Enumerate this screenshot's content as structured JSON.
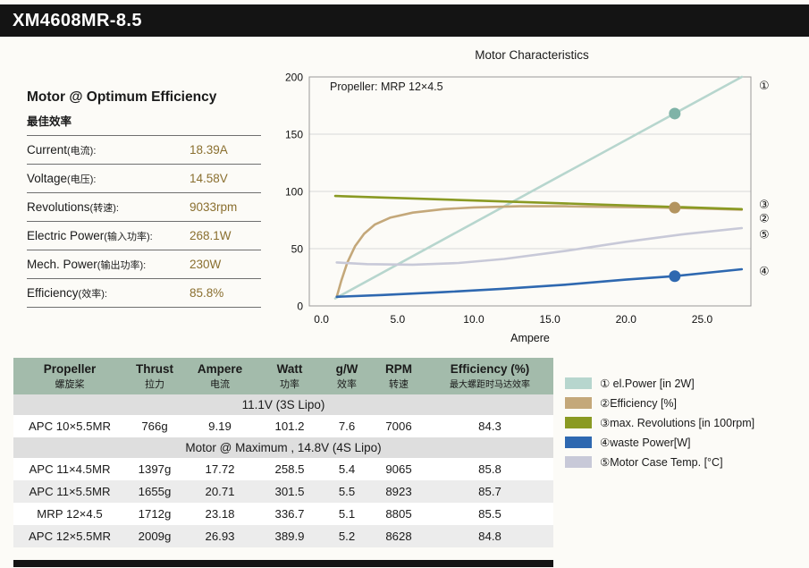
{
  "header": {
    "title": "XM4608MR-8.5"
  },
  "optimum": {
    "title": "Motor @ Optimum Efficiency",
    "subtitle": "最佳效率",
    "rows": [
      {
        "en": "Current",
        "cn": "(电流):",
        "value": "18.39A"
      },
      {
        "en": "Voltage",
        "cn": "(电压):",
        "value": "14.58V"
      },
      {
        "en": "Revolutions",
        "cn": "(转速):",
        "value": "9033rpm"
      },
      {
        "en": "Electric Power",
        "cn": "(输入功率):",
        "value": "268.1W"
      },
      {
        "en": "Mech. Power",
        "cn": "(输出功率):",
        "value": "230W"
      },
      {
        "en": "Efficiency",
        "cn": "(效率):",
        "value": "85.8%"
      }
    ]
  },
  "chart_data": {
    "type": "line",
    "title": "Motor Characteristics",
    "annotation": "Propeller: MRP 12×4.5",
    "xlabel": "Ampere",
    "xlim": [
      -0.8,
      28.2
    ],
    "ylim": [
      0,
      200
    ],
    "xticks": [
      0,
      5,
      10,
      15,
      20,
      25
    ],
    "yticks": [
      0,
      50,
      100,
      150,
      200
    ],
    "grid": "horizontal",
    "legend_position": "outside-bottom-right",
    "series": [
      {
        "glyph": "①",
        "name": "el.Power [in 2W]",
        "color": "#b7d6ce",
        "marker_color": "#7fb3a7",
        "x": [
          0.9,
          27.6
        ],
        "y": [
          6.6,
          200
        ],
        "marker": {
          "x": 23.2,
          "y": 168
        }
      },
      {
        "glyph": "②",
        "name": "Efficiency [%]",
        "color": "#c4a87a",
        "marker_color": "#b3945f",
        "x": [
          1.0,
          1.3,
          1.7,
          2.2,
          2.8,
          3.5,
          4.5,
          6,
          8,
          10,
          13,
          16,
          19,
          22,
          25,
          27.6
        ],
        "y": [
          8,
          22,
          38,
          52,
          63,
          71,
          77,
          81.5,
          84.5,
          86,
          87,
          87,
          86.5,
          86,
          85,
          84
        ],
        "marker": {
          "x": 23.2,
          "y": 85.8
        }
      },
      {
        "glyph": "③",
        "name": "max. Revolutions [in 100rpm]",
        "color": "#8a9a23",
        "x": [
          0.9,
          27.6
        ],
        "y": [
          96,
          84.5
        ]
      },
      {
        "glyph": "④",
        "name": "waste Power[W]",
        "color": "#2e68b0",
        "marker_color": "#2e68b0",
        "x": [
          1,
          4,
          8,
          12,
          16,
          20,
          23.2,
          27.6
        ],
        "y": [
          8,
          9.5,
          12,
          15,
          18.5,
          23,
          26,
          32
        ],
        "marker": {
          "x": 23.2,
          "y": 26
        }
      },
      {
        "glyph": "⑤",
        "name": "Motor Case Temp. [°C]",
        "color": "#c8c9d8",
        "x": [
          1,
          3,
          6,
          9,
          12,
          16,
          20,
          24,
          27.6
        ],
        "y": [
          38,
          36.5,
          36,
          37.5,
          41,
          48,
          56,
          63,
          68
        ]
      }
    ],
    "right_labels": [
      {
        "glyph": "①",
        "value": 193
      },
      {
        "glyph": "③",
        "value": 89
      },
      {
        "glyph": "②",
        "value": 77
      },
      {
        "glyph": "⑤",
        "value": 63
      },
      {
        "glyph": "④",
        "value": 31
      }
    ]
  },
  "table": {
    "headers": [
      {
        "en": "Propeller",
        "cn": "螺旋桨"
      },
      {
        "en": "Thrust",
        "cn": "拉力"
      },
      {
        "en": "Ampere",
        "cn": "电流"
      },
      {
        "en": "Watt",
        "cn": "功率"
      },
      {
        "en": "g/W",
        "cn": "效率"
      },
      {
        "en": "RPM",
        "cn": "转速"
      },
      {
        "en": "Efficiency (%)",
        "cn": "最大螺距时马达效率"
      }
    ],
    "section1": "11.1V (3S Lipo)",
    "section2": "Motor @ Maximum , 14.8V (4S Lipo)",
    "rows1": [
      [
        "APC 10×5.5MR",
        "766g",
        "9.19",
        "101.2",
        "7.6",
        "7006",
        "84.3"
      ]
    ],
    "rows2": [
      [
        "APC 11×4.5MR",
        "1397g",
        "17.72",
        "258.5",
        "5.4",
        "9065",
        "85.8"
      ],
      [
        "APC 11×5.5MR",
        "1655g",
        "20.71",
        "301.5",
        "5.5",
        "8923",
        "85.7"
      ],
      [
        "MRP 12×4.5",
        "1712g",
        "23.18",
        "336.7",
        "5.1",
        "8805",
        "85.5"
      ],
      [
        "APC 12×5.5MR",
        "2009g",
        "26.93",
        "389.9",
        "5.2",
        "8628",
        "84.8"
      ]
    ]
  },
  "legend": {
    "items": [
      {
        "label": "① el.Power [in 2W]",
        "color": "#b7d6ce"
      },
      {
        "label": "②Efficiency [%]",
        "color": "#c4a87a"
      },
      {
        "label": "③max. Revolutions [in 100rpm]",
        "color": "#8a9a23"
      },
      {
        "label": "④waste Power[W]",
        "color": "#2e68b0"
      },
      {
        "label": "⑤Motor Case Temp. [°C]",
        "color": "#c8c9d8"
      }
    ]
  }
}
